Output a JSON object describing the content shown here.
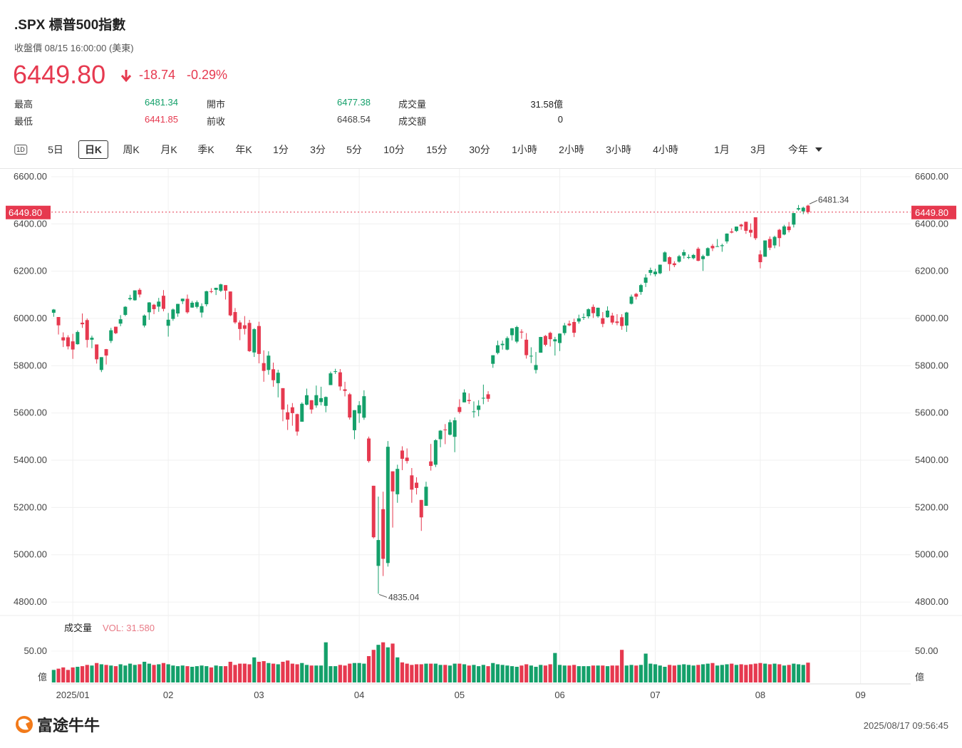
{
  "header": {
    "title": ".SPX  標普500指數",
    "subtitle": "收盤價 08/15 16:00:00 (美東)",
    "price": "6449.80",
    "change": "-18.74",
    "change_pct": "-0.29%"
  },
  "stats": [
    {
      "label": "最高",
      "value": "6481.34",
      "color": "#14a06a"
    },
    {
      "label": "開市",
      "value": "6477.38",
      "color": "#14a06a"
    },
    {
      "label": "成交量",
      "value": "31.58億",
      "color": "#222"
    },
    {
      "label": "最低",
      "value": "6441.85",
      "color": "#e6394f"
    },
    {
      "label": "前收",
      "value": "6468.54",
      "color": "#444"
    },
    {
      "label": "成交額",
      "value": "0",
      "color": "#222"
    }
  ],
  "tabs": [
    "1D",
    "5日",
    "日K",
    "周K",
    "月K",
    "季K",
    "年K",
    "1分",
    "3分",
    "5分",
    "10分",
    "15分",
    "30分",
    "1小時",
    "2小時",
    "3小時",
    "4小時",
    "1月",
    "3月",
    "今年"
  ],
  "selected_tab": 2,
  "chart_data": [
    {
      "type": "candlestick",
      "up_color": "#14a06a",
      "down_color": "#e6394f",
      "grid": true,
      "last_label": "6449.80",
      "xlim": [
        -0.5,
        179.5
      ],
      "xticks": [
        {
          "value": 4,
          "label": "2025/01"
        },
        {
          "value": 24,
          "label": "02"
        },
        {
          "value": 43,
          "label": "03"
        },
        {
          "value": 64,
          "label": "04"
        },
        {
          "value": 85,
          "label": "05"
        },
        {
          "value": 106,
          "label": "06"
        },
        {
          "value": 126,
          "label": "07"
        },
        {
          "value": 148,
          "label": "08"
        },
        {
          "value": 169,
          "label": "09"
        }
      ],
      "ylim": [
        4743,
        6633
      ],
      "yticks": [
        {
          "value": 4800,
          "label": "4800.00"
        },
        {
          "value": 5000,
          "label": "5000.00"
        },
        {
          "value": 5200,
          "label": "5200.00"
        },
        {
          "value": 5400,
          "label": "5400.00"
        },
        {
          "value": 5600,
          "label": "5600.00"
        },
        {
          "value": 5800,
          "label": "5800.00"
        },
        {
          "value": 6000,
          "label": "6000.00"
        },
        {
          "value": 6200,
          "label": "6200.00"
        },
        {
          "value": 6400,
          "label": "6400.00"
        },
        {
          "value": 6600,
          "label": "6600.00"
        }
      ],
      "open": [
        6024,
        6006,
        5920,
        5920,
        5903,
        5891,
        5982,
        5993,
        5910,
        5890,
        5782,
        5870,
        5905,
        5965,
        5978,
        6015,
        6081,
        6077,
        6121,
        5970,
        6026,
        6058,
        6050,
        6096,
        5969,
        5998,
        6021,
        6073,
        6083,
        6046,
        6049,
        6025,
        6060,
        6115,
        6121,
        6117,
        6141,
        6114,
        6027,
        5983,
        5971,
        5981,
        5856,
        5968,
        5811,
        5782,
        5785,
        5726,
        5705,
        5603,
        5624,
        5595,
        5563,
        5635,
        5654,
        5632,
        5646,
        5630,
        5718,
        5776,
        5772,
        5700,
        5679,
        5527,
        5598,
        5580,
        5492,
        5292,
        4953,
        5193,
        4965,
        5353,
        5256,
        5441,
        5411,
        5336,
        5305,
        5232,
        5207,
        5395,
        5381,
        5489,
        5530,
        5508,
        5499,
        5625,
        5645,
        5655,
        5605,
        5613,
        5663,
        5679,
        5808,
        5854,
        5887,
        5868,
        5929,
        5902,
        5944,
        5910,
        5841,
        5782,
        5855,
        5926,
        5939,
        5903,
        5896,
        5938,
        5978,
        5985,
        5987,
        6004,
        6009,
        6049,
        6009,
        6001,
        6005,
        6012,
        5987,
        6005,
        5970,
        6062,
        6104,
        6112,
        6151,
        6193,
        6187,
        6191,
        6240,
        6259,
        6233,
        6240,
        6266,
        6256,
        6255,
        6295,
        6251,
        6265,
        6307,
        6304,
        6306,
        6326,
        6368,
        6370,
        6397,
        6409,
        6375,
        6428,
        6271,
        6261,
        6336,
        6309,
        6375,
        6355,
        6389,
        6397,
        6461,
        6453,
        6477.38
      ],
      "high": [
        6040,
        6006,
        5941,
        5929,
        5935,
        5949,
        6021,
        6000,
        5927,
        5890,
        5836,
        5871,
        5960,
        5965,
        6014,
        6052,
        6100,
        6119,
        6128,
        6017,
        6069,
        6062,
        6087,
        6120,
        6023,
        6042,
        6062,
        6084,
        6101,
        6074,
        6076,
        6064,
        6117,
        6128,
        6130,
        6147,
        6141,
        6114,
        6044,
        5992,
        6010,
        5994,
        5959,
        5986,
        5865,
        5861,
        5813,
        5783,
        5705,
        5636,
        5642,
        5597,
        5645,
        5703,
        5654,
        5716,
        5711,
        5670,
        5775,
        5787,
        5786,
        5732,
        5685,
        5612,
        5650,
        5696,
        5500,
        5292,
        5246,
        5267,
        5481,
        5353,
        5381,
        5459,
        5450,
        5367,
        5328,
        5232,
        5309,
        5469,
        5489,
        5528,
        5553,
        5572,
        5581,
        5658,
        5700,
        5683,
        5649,
        5654,
        5720,
        5692,
        5844,
        5906,
        5906,
        5924,
        5959,
        5969,
        5954,
        5938,
        5878,
        5858,
        5922,
        5930,
        5944,
        5922,
        5937,
        5981,
        5991,
        5999,
        6016,
        6021,
        6043,
        6059,
        6046,
        6027,
        6051,
        6024,
        6018,
        6018,
        6028,
        6101,
        6108,
        6146,
        6187,
        6215,
        6210,
        6228,
        6284,
        6263,
        6242,
        6269,
        6291,
        6271,
        6273,
        6302,
        6270,
        6301,
        6315,
        6336,
        6316,
        6360,
        6381,
        6389,
        6401,
        6409,
        6402,
        6428,
        6288,
        6330,
        6347,
        6350,
        6379,
        6396,
        6408,
        6446,
        6480,
        6473,
        6481.34
      ],
      "low": [
        6007,
        5932,
        5879,
        5869,
        5829,
        5889,
        5960,
        5877,
        5874,
        5809,
        5773,
        5805,
        5896,
        5934,
        5967,
        6010,
        6076,
        6075,
        6089,
        5962,
        5994,
        6018,
        6028,
        6030,
        5923,
        5990,
        6007,
        6061,
        6020,
        6045,
        6042,
        6004,
        6051,
        6107,
        6099,
        6112,
        6080,
        6009,
        5977,
        5908,
        5932,
        5858,
        5837,
        5810,
        5732,
        5762,
        5711,
        5666,
        5565,
        5528,
        5546,
        5504,
        5563,
        5632,
        5597,
        5622,
        5632,
        5603,
        5718,
        5765,
        5695,
        5670,
        5572,
        5489,
        5558,
        5571,
        5390,
        5069,
        4835.04,
        4910,
        4950,
        5115,
        5220,
        5358,
        5386,
        5220,
        5255,
        5101,
        5207,
        5356,
        5371,
        5455,
        5468,
        5505,
        5434,
        5597,
        5645,
        5638,
        5580,
        5586,
        5637,
        5647,
        5791,
        5848,
        5868,
        5865,
        5907,
        5895,
        5914,
        5830,
        5811,
        5767,
        5855,
        5882,
        5881,
        5843,
        5862,
        5929,
        5967,
        5921,
        5978,
        5994,
        6000,
        6002,
        6003,
        5963,
        6003,
        5974,
        5971,
        5952,
        5943,
        6059,
        6080,
        6100,
        6133,
        6182,
        6178,
        6187,
        6240,
        6201,
        6217,
        6236,
        6253,
        6251,
        6250,
        6242,
        6201,
        6263,
        6285,
        6303,
        6282,
        6317,
        6360,
        6366,
        6375,
        6358,
        6345,
        6332,
        6212,
        6261,
        6289,
        6297,
        6304,
        6352,
        6364,
        6385,
        6456,
        6441,
        6441.85
      ],
      "close": [
        6037.59,
        5970.84,
        5906.94,
        5881.63,
        5868.55,
        5942.47,
        5975.38,
        5909.03,
        5918.25,
        5827.04,
        5836.22,
        5842.91,
        5949.91,
        5937.34,
        5996.66,
        6049.24,
        6086.37,
        6118.71,
        6101.24,
        6012.28,
        6067.7,
        6039.31,
        6071.17,
        6040.53,
        5994.57,
        6037.88,
        6061.48,
        6083.57,
        6025.99,
        6066.44,
        6068.5,
        6051.97,
        6115.07,
        6114.63,
        6129.58,
        6144.15,
        6117.52,
        6013.13,
        5983.25,
        5955.25,
        5956.06,
        5861.57,
        5954.5,
        5849.72,
        5778.15,
        5842.63,
        5738.52,
        5770.2,
        5614.56,
        5572.07,
        5599.3,
        5521.52,
        5638.94,
        5675.12,
        5614.66,
        5675.29,
        5662.89,
        5667.56,
        5767.57,
        5776.65,
        5712.2,
        5693.31,
        5580.94,
        5611.85,
        5633.07,
        5670.97,
        5396.52,
        5074.08,
        5062.25,
        4982.77,
        5456.9,
        5268.05,
        5363.36,
        5405.97,
        5396.63,
        5275.7,
        5282.7,
        5158.2,
        5287.76,
        5375.86,
        5484.77,
        5525.21,
        5528.75,
        5560.83,
        5569.06,
        5604.14,
        5686.67,
        5650.38,
        5606.91,
        5631.28,
        5663.94,
        5659.91,
        5844.19,
        5886.55,
        5892.58,
        5916.93,
        5958.38,
        5963.6,
        5940.46,
        5844.61,
        5842.01,
        5802.82,
        5921.54,
        5888.55,
        5912.17,
        5911.69,
        5935.94,
        5970.37,
        5970.81,
        5939.3,
        6000.36,
        6005.88,
        6038.81,
        6022.24,
        6045.26,
        5976.97,
        6033.11,
        5982.72,
        5980.87,
        5967.84,
        6025.17,
        6092.18,
        6092.16,
        6141.02,
        6173.07,
        6204.95,
        6198.01,
        6227.42,
        6279.35,
        6229.98,
        6225.52,
        6263.26,
        6280.46,
        6259.75,
        6268.56,
        6243.76,
        6263.7,
        6297.36,
        6296.79,
        6305.6,
        6309.62,
        6358.91,
        6363.35,
        6388.64,
        6389.77,
        6370.86,
        6362.9,
        6339.39,
        6238.01,
        6329.94,
        6299.19,
        6345.06,
        6340,
        6389.45,
        6373.45,
        6445.76,
        6466.58,
        6468.54,
        6449.8
      ]
    },
    {
      "type": "bar",
      "title": "成交量",
      "value_label": "VOL: 31.580",
      "unit": "億",
      "ylim": [
        0,
        104.5
      ],
      "yticks": [
        {
          "value": 50,
          "label": "50.00"
        }
      ],
      "values": [
        20,
        22,
        24,
        20,
        24,
        25,
        26,
        28,
        27,
        31,
        29,
        28,
        27,
        26,
        29,
        27,
        30,
        28,
        29,
        33,
        30,
        28,
        29,
        31,
        29,
        27,
        26,
        27,
        26,
        25,
        26,
        27,
        26,
        24,
        27,
        26,
        26,
        33,
        28,
        30,
        30,
        29,
        40,
        33,
        34,
        31,
        30,
        29,
        33,
        35,
        30,
        29,
        31,
        28,
        27,
        27,
        27,
        64,
        26,
        26,
        28,
        27,
        30,
        31,
        31,
        30,
        42,
        52,
        60,
        64,
        56,
        62,
        40,
        32,
        30,
        28,
        29,
        29,
        30,
        30,
        30,
        28,
        28,
        27,
        30,
        30,
        29,
        27,
        28,
        26,
        28,
        26,
        31,
        29,
        28,
        27,
        26,
        25,
        27,
        29,
        27,
        25,
        28,
        27,
        29,
        47,
        28,
        27,
        27,
        28,
        26,
        26,
        26,
        27,
        27,
        27,
        26,
        27,
        27,
        52,
        27,
        28,
        27,
        28,
        46,
        30,
        29,
        27,
        25,
        28,
        27,
        28,
        29,
        28,
        27,
        28,
        29,
        30,
        31,
        27,
        28,
        29,
        30,
        28,
        29,
        28,
        29,
        30,
        31,
        30,
        29,
        30,
        29,
        27,
        28,
        30,
        29,
        28,
        31.58
      ]
    }
  ],
  "footer": {
    "brand": "富途牛牛",
    "timestamp": "2025/08/17 09:56:45"
  }
}
